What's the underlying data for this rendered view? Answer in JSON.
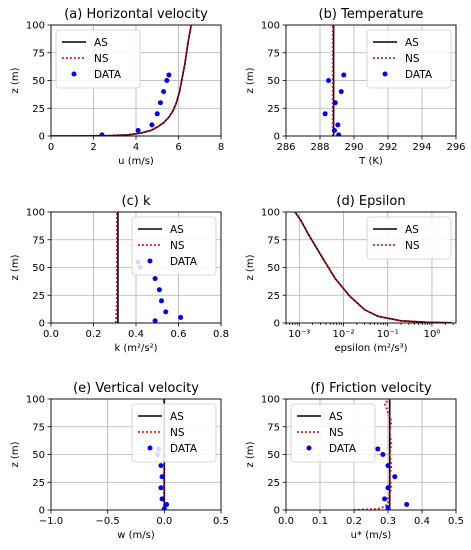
{
  "chart_data": [
    {
      "type": "line",
      "title": "(a) Horizontal velocity",
      "xlabel": "u (m/s)",
      "ylabel": "z (m)",
      "xlim": [
        0,
        8
      ],
      "ylim": [
        0,
        100
      ],
      "xticks": [
        0,
        2,
        4,
        6,
        8
      ],
      "yticks": [
        0,
        25,
        50,
        75,
        100
      ],
      "xscale": "linear",
      "grid": true,
      "legend": "top-left",
      "series": [
        {
          "name": "AS",
          "kind": "line",
          "color": "#000000",
          "x": [
            0.0,
            1.5,
            2.7,
            3.6,
            4.2,
            4.7,
            5.0,
            5.3,
            5.55,
            5.75,
            5.9,
            6.05,
            6.15,
            6.3,
            6.4,
            6.5,
            6.6
          ],
          "y": [
            0.0,
            0.05,
            0.3,
            1.0,
            2.5,
            5,
            8,
            12,
            17,
            23,
            30,
            40,
            50,
            65,
            78,
            90,
            100
          ]
        },
        {
          "name": "NS",
          "kind": "dotted",
          "color": "#e8000b",
          "x": [
            0.0,
            1.5,
            2.7,
            3.6,
            4.2,
            4.7,
            5.0,
            5.3,
            5.55,
            5.75,
            5.9,
            6.05,
            6.15,
            6.3,
            6.4,
            6.5,
            6.6
          ],
          "y": [
            0.0,
            0.05,
            0.3,
            1.0,
            2.5,
            5,
            8,
            12,
            17,
            23,
            30,
            40,
            50,
            65,
            78,
            90,
            100
          ]
        },
        {
          "name": "DATA",
          "kind": "scatter",
          "color": "#0000ff",
          "x": [
            2.4,
            4.1,
            4.75,
            5.0,
            5.15,
            5.3,
            5.45,
            5.55
          ],
          "y": [
            1,
            5,
            10,
            20,
            30,
            40,
            50,
            55
          ]
        }
      ]
    },
    {
      "type": "line",
      "title": "(b) Temperature",
      "xlabel": "T (K)",
      "ylabel": "z (m)",
      "xlim": [
        286,
        296
      ],
      "ylim": [
        0,
        100
      ],
      "xticks": [
        286,
        288,
        290,
        292,
        294,
        296
      ],
      "yticks": [
        0,
        25,
        50,
        75,
        100
      ],
      "xscale": "linear",
      "grid": true,
      "legend": "top-right",
      "series": [
        {
          "name": "AS",
          "kind": "line",
          "color": "#000000",
          "x": [
            288.8,
            288.8
          ],
          "y": [
            0,
            100
          ]
        },
        {
          "name": "NS",
          "kind": "dotted",
          "color": "#e8000b",
          "x": [
            288.75,
            288.75
          ],
          "y": [
            0,
            100
          ]
        },
        {
          "name": "DATA",
          "kind": "scatter",
          "color": "#0000ff",
          "x": [
            289.1,
            288.85,
            288.3,
            289.05,
            288.9,
            289.25,
            288.5,
            289.4
          ],
          "y": [
            1,
            5,
            20,
            10,
            30,
            40,
            50,
            55
          ]
        }
      ]
    },
    {
      "type": "line",
      "title": "(c) k",
      "xlabel": "k (m²/s²)",
      "ylabel": "z (m)",
      "xlim": [
        0.0,
        0.8
      ],
      "ylim": [
        0,
        100
      ],
      "xticks": [
        0.0,
        0.2,
        0.4,
        0.6,
        0.8
      ],
      "yticks": [
        0,
        25,
        50,
        75,
        100
      ],
      "xticklabels": [
        "0.0",
        "0.2",
        "0.4",
        "0.6",
        "0.8"
      ],
      "xscale": "linear",
      "grid": true,
      "legend": "top-right",
      "series": [
        {
          "name": "AS",
          "kind": "line",
          "color": "#000000",
          "x": [
            0.315,
            0.315
          ],
          "y": [
            0,
            100
          ]
        },
        {
          "name": "NS",
          "kind": "dotted",
          "color": "#e8000b",
          "x": [
            0.305,
            0.308,
            0.31,
            0.31
          ],
          "y": [
            0,
            10,
            20,
            100
          ]
        },
        {
          "name": "DATA",
          "kind": "scatter",
          "color": "#0000ff",
          "x": [
            0.49,
            0.61,
            0.54,
            0.52,
            0.51,
            0.49,
            0.42,
            0.41
          ],
          "y": [
            2,
            5,
            10,
            20,
            30,
            40,
            50,
            55
          ]
        }
      ]
    },
    {
      "type": "line",
      "title": "(d) Epsilon",
      "xlabel": "epsilon (m²/s³)",
      "ylabel": "z (m)",
      "xlim": [
        0.0005,
        3.5
      ],
      "ylim": [
        0,
        100
      ],
      "xticks": [
        0.001,
        0.01,
        0.1,
        1
      ],
      "yticks": [
        0,
        25,
        50,
        75,
        100
      ],
      "xticklabels": [
        "10⁻³",
        "10⁻²",
        "10⁻¹",
        "10⁰"
      ],
      "xscale": "log",
      "grid": true,
      "legend": "top-right",
      "series": [
        {
          "name": "AS",
          "kind": "line",
          "color": "#000000",
          "x": [
            2.8,
            0.8,
            0.2,
            0.06,
            0.03,
            0.014,
            0.0065,
            0.0032,
            0.0016,
            0.0011,
            0.0008
          ],
          "y": [
            0.2,
            0.6,
            2,
            6,
            12,
            24,
            40,
            60,
            80,
            92,
            100
          ]
        },
        {
          "name": "NS",
          "kind": "dotted",
          "color": "#e8000b",
          "x": [
            2.8,
            0.8,
            0.2,
            0.06,
            0.03,
            0.014,
            0.0065,
            0.0032,
            0.0016,
            0.0011,
            0.0008
          ],
          "y": [
            0.2,
            0.6,
            2,
            6,
            12,
            24,
            40,
            60,
            80,
            92,
            100
          ]
        }
      ]
    },
    {
      "type": "line",
      "title": "(e) Vertical velocity",
      "xlabel": "w (m/s)",
      "ylabel": "z (m)",
      "xlim": [
        -1.0,
        0.5
      ],
      "ylim": [
        0,
        100
      ],
      "xticks": [
        -1.0,
        -0.5,
        0.0,
        0.5
      ],
      "yticks": [
        0,
        25,
        50,
        75,
        100
      ],
      "xticklabels": [
        "−1.0",
        "−0.5",
        "0.0",
        "0.5"
      ],
      "xscale": "linear",
      "grid": true,
      "legend": "top-right",
      "series": [
        {
          "name": "AS",
          "kind": "line",
          "color": "#000000",
          "x": [
            0.0,
            0.0
          ],
          "y": [
            0,
            100
          ]
        },
        {
          "name": "NS",
          "kind": "dotted",
          "color": "#e8000b",
          "x": [
            -0.005,
            -0.005
          ],
          "y": [
            0,
            100
          ]
        },
        {
          "name": "DATA",
          "kind": "scatter",
          "color": "#0000ff",
          "x": [
            0.0,
            0.02,
            -0.02,
            -0.03,
            -0.02,
            -0.03,
            -0.06,
            -0.05
          ],
          "y": [
            1,
            5,
            10,
            20,
            30,
            40,
            50,
            55
          ]
        }
      ]
    },
    {
      "type": "line",
      "title": "(f) Friction velocity",
      "xlabel": "u* (m/s)",
      "ylabel": "z (m)",
      "xlim": [
        0.0,
        0.5
      ],
      "ylim": [
        0,
        100
      ],
      "xticks": [
        0.0,
        0.1,
        0.2,
        0.3,
        0.4,
        0.5
      ],
      "yticks": [
        0,
        25,
        50,
        75,
        100
      ],
      "xticklabels": [
        "0.0",
        "0.1",
        "0.2",
        "0.3",
        "0.4",
        "0.5"
      ],
      "xscale": "linear",
      "grid": true,
      "legend": "top-left",
      "series": [
        {
          "name": "AS",
          "kind": "line",
          "color": "#000000",
          "x": [
            0.305,
            0.305
          ],
          "y": [
            0,
            100
          ]
        },
        {
          "name": "NS",
          "kind": "dotted",
          "color": "#e8000b",
          "x": [
            0.2,
            0.27,
            0.29,
            0.3,
            0.3,
            0.31,
            0.305,
            0.31,
            0.305,
            0.31,
            0.305,
            0.31,
            0.29,
            0.305
          ],
          "y": [
            0,
            1,
            3,
            6,
            10,
            20,
            30,
            40,
            50,
            60,
            70,
            80,
            96,
            100
          ]
        },
        {
          "name": "DATA",
          "kind": "scatter",
          "color": "#0000ff",
          "x": [
            0.3,
            0.355,
            0.29,
            0.32,
            0.3,
            0.3,
            0.285,
            0.27
          ],
          "y": [
            2,
            5,
            10,
            30,
            20,
            40,
            50,
            55
          ]
        }
      ]
    }
  ]
}
